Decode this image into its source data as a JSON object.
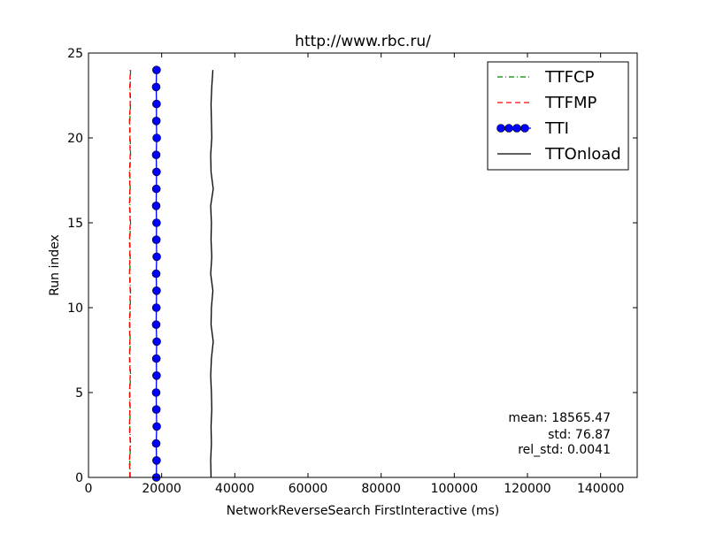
{
  "chart_data": {
    "type": "line",
    "title": "http://www.rbc.ru/",
    "xlabel": "NetworkReverseSearch FirstInteractive (ms)",
    "ylabel": "Run index",
    "xlim": [
      0,
      150000
    ],
    "ylim": [
      0,
      25
    ],
    "xticks": [
      0,
      20000,
      40000,
      60000,
      80000,
      100000,
      120000,
      140000
    ],
    "xtick_labels": [
      "0",
      "20000",
      "40000",
      "60000",
      "80000",
      "100000",
      "120000",
      "140000"
    ],
    "yticks": [
      0,
      5,
      10,
      15,
      20,
      25
    ],
    "ytick_labels": [
      "0",
      "5",
      "10",
      "15",
      "20",
      "25"
    ],
    "grid": false,
    "legend_position": "top-right",
    "series": [
      {
        "name": "TTFCP",
        "style": "dashdot",
        "color": "#008000",
        "y": [
          0,
          1,
          2,
          3,
          4,
          5,
          6,
          7,
          8,
          9,
          10,
          11,
          12,
          13,
          14,
          15,
          16,
          17,
          18,
          19,
          20,
          21,
          22,
          23,
          24
        ],
        "x": [
          11400,
          11300,
          11500,
          11300,
          11400,
          11300,
          11500,
          11300,
          11400,
          11300,
          11400,
          11500,
          11300,
          11400,
          11300,
          11500,
          11300,
          11400,
          11300,
          11500,
          11400,
          11300,
          11500,
          11400,
          11500
        ]
      },
      {
        "name": "TTFMP",
        "style": "dashed",
        "color": "#ff0000",
        "y": [
          0,
          1,
          2,
          3,
          4,
          5,
          6,
          7,
          8,
          9,
          10,
          11,
          12,
          13,
          14,
          15,
          16,
          17,
          18,
          19,
          20,
          21,
          22,
          23,
          24
        ],
        "x": [
          11300,
          11200,
          11400,
          11200,
          11300,
          11200,
          11400,
          11200,
          11300,
          11200,
          11300,
          11400,
          11200,
          11300,
          11200,
          11400,
          11200,
          11300,
          11200,
          11400,
          11300,
          11200,
          11400,
          11300,
          11400
        ]
      },
      {
        "name": "TTI",
        "style": "solid-markers",
        "color": "#0000ff",
        "y": [
          0,
          1,
          2,
          3,
          4,
          5,
          6,
          7,
          8,
          9,
          10,
          11,
          12,
          13,
          14,
          15,
          16,
          17,
          18,
          19,
          20,
          21,
          22,
          23,
          24
        ],
        "x": [
          18550,
          18600,
          18500,
          18650,
          18550,
          18500,
          18600,
          18550,
          18650,
          18500,
          18550,
          18600,
          18500,
          18650,
          18550,
          18600,
          18500,
          18550,
          18600,
          18500,
          18650,
          18550,
          18600,
          18500,
          18600
        ]
      },
      {
        "name": "TTOnload",
        "style": "solid",
        "color": "#000000",
        "y": [
          0,
          1,
          2,
          3,
          4,
          5,
          6,
          7,
          8,
          9,
          10,
          11,
          12,
          13,
          14,
          15,
          16,
          17,
          18,
          19,
          20,
          21,
          22,
          23,
          24
        ],
        "x": [
          33500,
          33400,
          33600,
          33500,
          33700,
          33600,
          33400,
          33600,
          34100,
          33500,
          33600,
          34000,
          33400,
          33700,
          33500,
          33600,
          33400,
          34100,
          33500,
          33400,
          33700,
          33600,
          33500,
          33700,
          34000
        ]
      }
    ],
    "annotations": [
      "mean: 18565.47",
      "std: 76.87",
      "rel_std: 0.0041"
    ]
  }
}
